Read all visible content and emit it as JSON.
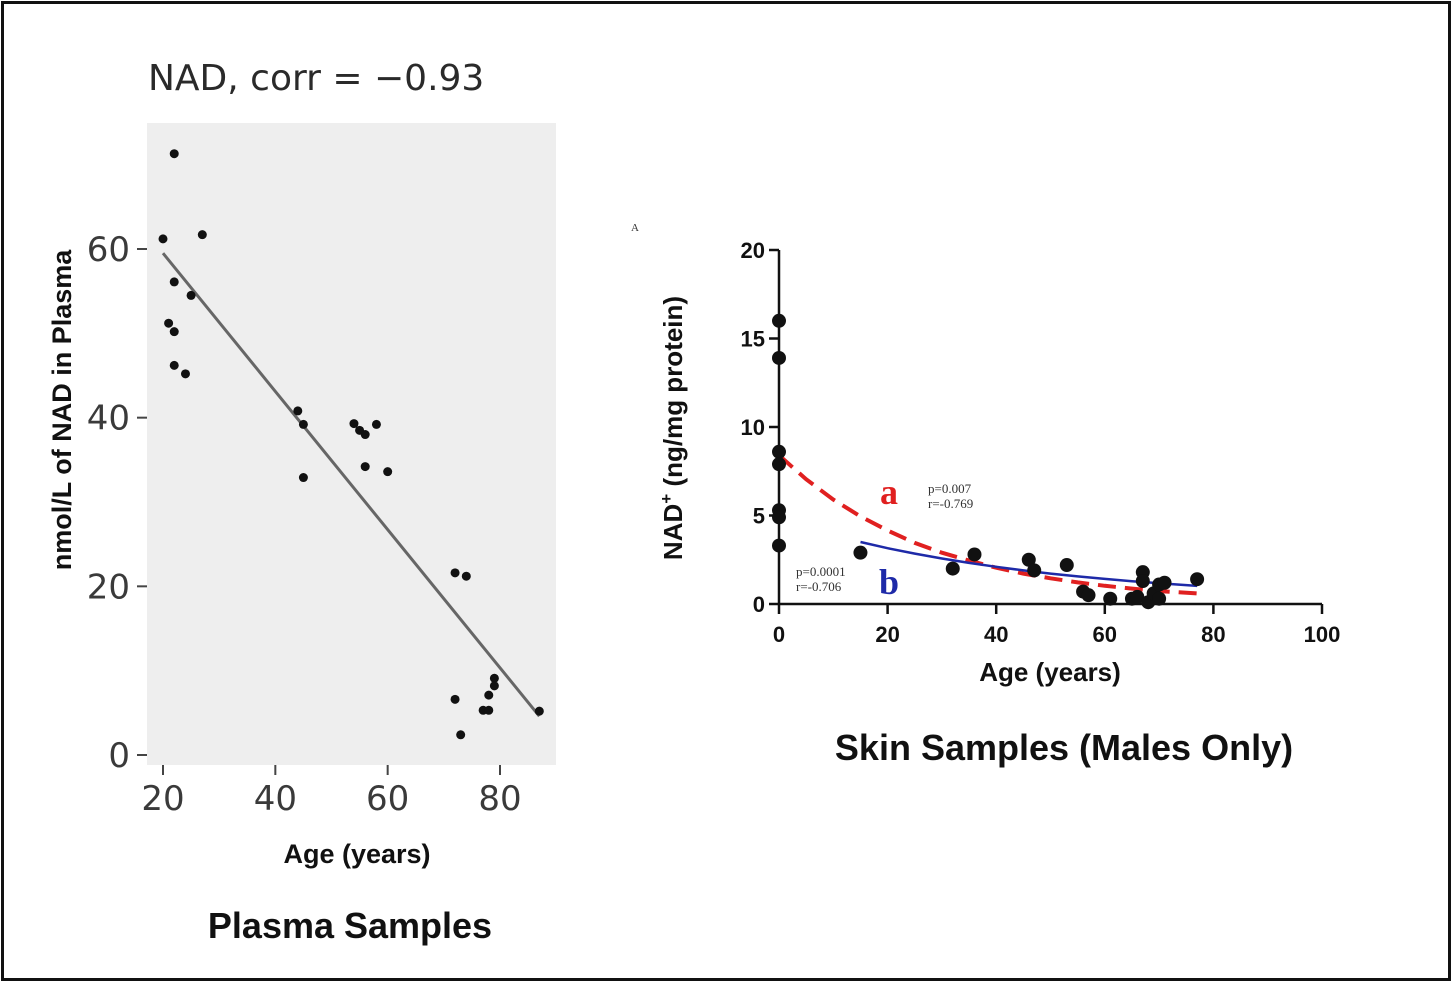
{
  "chart_data": [
    {
      "type": "scatter",
      "title": "NAD, corr = −0.93",
      "xlabel": "Age (years)",
      "ylabel": "nmol/L of NAD in Plasma",
      "caption": "Plasma Samples",
      "xlim": [
        18,
        88
      ],
      "ylim": [
        -1,
        75
      ],
      "xticks": [
        20,
        40,
        60,
        80
      ],
      "yticks": [
        0,
        20,
        40,
        60
      ],
      "background_color": "#eeeeee",
      "point_color": "#111111",
      "line_color": "#666666",
      "points": [
        {
          "x": 20,
          "y": 61.2
        },
        {
          "x": 21,
          "y": 51.2
        },
        {
          "x": 22,
          "y": 71.3
        },
        {
          "x": 22,
          "y": 56.1
        },
        {
          "x": 22,
          "y": 50.2
        },
        {
          "x": 22,
          "y": 46.2
        },
        {
          "x": 24,
          "y": 45.2
        },
        {
          "x": 25,
          "y": 54.5
        },
        {
          "x": 27,
          "y": 61.7
        },
        {
          "x": 44,
          "y": 40.8
        },
        {
          "x": 45,
          "y": 39.2
        },
        {
          "x": 45,
          "y": 32.9
        },
        {
          "x": 54,
          "y": 39.3
        },
        {
          "x": 55,
          "y": 38.5
        },
        {
          "x": 56,
          "y": 38.0
        },
        {
          "x": 56,
          "y": 34.2
        },
        {
          "x": 58,
          "y": 39.2
        },
        {
          "x": 60,
          "y": 33.6
        },
        {
          "x": 72,
          "y": 21.6
        },
        {
          "x": 72,
          "y": 6.6
        },
        {
          "x": 73,
          "y": 2.4
        },
        {
          "x": 74,
          "y": 21.2
        },
        {
          "x": 77,
          "y": 5.3
        },
        {
          "x": 78,
          "y": 5.3
        },
        {
          "x": 78,
          "y": 7.1
        },
        {
          "x": 79,
          "y": 9.1
        },
        {
          "x": 79,
          "y": 8.2
        },
        {
          "x": 87,
          "y": 5.2
        }
      ],
      "fit_line": [
        {
          "x": 20,
          "y": 59.5
        },
        {
          "x": 87,
          "y": 4.6
        }
      ]
    },
    {
      "type": "scatter",
      "panel_label": "A",
      "xlabel": "Age (years)",
      "ylabel_main": "NAD",
      "ylabel_sup": "+",
      "ylabel_rest": " (ng/mg protein)",
      "caption": "Skin Samples (Males Only)",
      "xlim": [
        0,
        100
      ],
      "ylim": [
        0,
        20
      ],
      "xticks": [
        0,
        20,
        40,
        60,
        80,
        100
      ],
      "yticks": [
        0,
        5,
        10,
        15,
        20
      ],
      "point_color": "#111111",
      "points": [
        {
          "x": 0,
          "y": 16.0
        },
        {
          "x": 0,
          "y": 13.9
        },
        {
          "x": 0,
          "y": 8.6
        },
        {
          "x": 0,
          "y": 7.9
        },
        {
          "x": 0,
          "y": 5.3
        },
        {
          "x": 0,
          "y": 4.9
        },
        {
          "x": 0,
          "y": 3.3
        },
        {
          "x": 15,
          "y": 2.9
        },
        {
          "x": 32,
          "y": 2.0
        },
        {
          "x": 36,
          "y": 2.8
        },
        {
          "x": 46,
          "y": 2.5
        },
        {
          "x": 47,
          "y": 1.9
        },
        {
          "x": 53,
          "y": 2.2
        },
        {
          "x": 56,
          "y": 0.7
        },
        {
          "x": 57,
          "y": 0.5
        },
        {
          "x": 61,
          "y": 0.3
        },
        {
          "x": 65,
          "y": 0.3
        },
        {
          "x": 66,
          "y": 0.4
        },
        {
          "x": 67,
          "y": 1.8
        },
        {
          "x": 67,
          "y": 1.3
        },
        {
          "x": 68,
          "y": 0.1
        },
        {
          "x": 69,
          "y": 0.6
        },
        {
          "x": 70,
          "y": 0.3
        },
        {
          "x": 70,
          "y": 1.1
        },
        {
          "x": 71,
          "y": 1.2
        },
        {
          "x": 77,
          "y": 1.4
        }
      ],
      "curves": [
        {
          "label": "a",
          "color": "#e02020",
          "dashed": true,
          "stats": [
            "p=0.007",
            "r=-0.769"
          ],
          "x": [
            0,
            5,
            10,
            15,
            20,
            25,
            30,
            35,
            40,
            45,
            50,
            55,
            60,
            65,
            70,
            77
          ],
          "y": [
            8.4,
            7.05,
            5.9,
            4.95,
            4.15,
            3.45,
            2.9,
            2.45,
            2.05,
            1.72,
            1.45,
            1.22,
            1.03,
            0.87,
            0.73,
            0.6
          ]
        },
        {
          "label": "b",
          "color": "#1e2aa8",
          "dashed": false,
          "stats": [
            "p=0.0001",
            "r=-0.706"
          ],
          "x": [
            15,
            20,
            25,
            30,
            35,
            40,
            45,
            50,
            55,
            60,
            65,
            70,
            77
          ],
          "y": [
            3.5,
            3.15,
            2.85,
            2.57,
            2.32,
            2.1,
            1.9,
            1.72,
            1.56,
            1.42,
            1.29,
            1.17,
            1.02
          ]
        }
      ]
    }
  ]
}
